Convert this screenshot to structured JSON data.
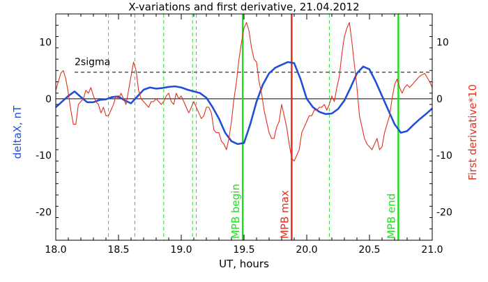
{
  "chart_data": {
    "type": "line",
    "title": "X-variations and first derivative, 21.04.2012",
    "xlabel": "UT, hours",
    "ylabel_left": "deltaX, nT",
    "ylabel_right": "First derivative*10",
    "xlim": [
      18.0,
      21.0
    ],
    "ylim": [
      -25,
      15
    ],
    "x_ticks": [
      18.0,
      18.5,
      19.0,
      19.5,
      20.0,
      20.5,
      21.0
    ],
    "x_tick_labels": [
      "18.0",
      "18.5",
      "19.0",
      "19.5",
      "20.0",
      "20.5",
      "21.0"
    ],
    "y_ticks": [
      -20,
      -10,
      0,
      10
    ],
    "y_tick_labels": [
      "-20",
      "-10",
      "0",
      "10"
    ],
    "grid": false,
    "colors": {
      "deltaX": "#1f4fd8",
      "derivative": "#e0301e",
      "green": "#22dd22",
      "red": "#e0301e",
      "axis": "#000000"
    },
    "sigma_line": {
      "label": "2sigma",
      "value": 4.7
    },
    "zero_line": 0,
    "dashed_markers": [
      18.42,
      18.63,
      18.86,
      19.09,
      19.12,
      20.18
    ],
    "event_lines": [
      {
        "label": "MPB begin",
        "x": 19.49,
        "color": "#22dd22"
      },
      {
        "label": "MPB max",
        "x": 19.88,
        "color": "#e0301e"
      },
      {
        "label": "MPB end",
        "x": 20.73,
        "color": "#22dd22"
      }
    ],
    "series": [
      {
        "id": "deltaX",
        "color": "#1f4fd8",
        "x": [
          18.0,
          18.05,
          18.1,
          18.15,
          18.2,
          18.25,
          18.3,
          18.35,
          18.4,
          18.45,
          18.5,
          18.55,
          18.6,
          18.65,
          18.7,
          18.75,
          18.8,
          18.85,
          18.9,
          18.95,
          19.0,
          19.05,
          19.1,
          19.15,
          19.2,
          19.25,
          19.3,
          19.35,
          19.4,
          19.45,
          19.5,
          19.55,
          19.6,
          19.65,
          19.7,
          19.75,
          19.8,
          19.85,
          19.9,
          19.95,
          20.0,
          20.05,
          20.1,
          20.15,
          20.2,
          20.25,
          20.3,
          20.35,
          20.4,
          20.45,
          20.5,
          20.55,
          20.6,
          20.65,
          20.7,
          20.75,
          20.8,
          20.85,
          20.9,
          20.95,
          21.0
        ],
        "values": [
          -1.5,
          -0.5,
          0.5,
          1.3,
          0.3,
          -0.6,
          -0.6,
          -0.2,
          -0.1,
          0.3,
          0.4,
          -0.3,
          -0.8,
          0.4,
          1.6,
          2.0,
          1.8,
          1.9,
          2.1,
          2.2,
          2.0,
          1.6,
          1.3,
          1.0,
          0.2,
          -1.5,
          -3.5,
          -6.0,
          -7.5,
          -8.0,
          -7.8,
          -4.5,
          -0.5,
          2.5,
          4.5,
          5.5,
          6.0,
          6.5,
          6.3,
          3.5,
          0.0,
          -1.5,
          -2.3,
          -2.7,
          -2.6,
          -1.8,
          -0.3,
          2.0,
          4.5,
          5.7,
          5.2,
          3.0,
          0.5,
          -2.0,
          -4.5,
          -6.0,
          -5.7,
          -4.6,
          -3.6,
          -2.7,
          -1.7
        ]
      },
      {
        "id": "derivative",
        "color": "#e0301e",
        "x": [
          18.0,
          18.02,
          18.04,
          18.06,
          18.08,
          18.1,
          18.12,
          18.14,
          18.16,
          18.18,
          18.2,
          18.22,
          18.24,
          18.26,
          18.28,
          18.3,
          18.32,
          18.34,
          18.36,
          18.38,
          18.4,
          18.42,
          18.44,
          18.46,
          18.48,
          18.5,
          18.52,
          18.54,
          18.56,
          18.58,
          18.6,
          18.62,
          18.64,
          18.66,
          18.68,
          18.7,
          18.72,
          18.74,
          18.76,
          18.78,
          18.8,
          18.82,
          18.84,
          18.86,
          18.88,
          18.9,
          18.92,
          18.94,
          18.96,
          18.98,
          19.0,
          19.02,
          19.04,
          19.06,
          19.08,
          19.1,
          19.12,
          19.14,
          19.16,
          19.18,
          19.2,
          19.22,
          19.24,
          19.26,
          19.28,
          19.3,
          19.32,
          19.34,
          19.36,
          19.38,
          19.4,
          19.42,
          19.44,
          19.46,
          19.48,
          19.5,
          19.52,
          19.54,
          19.56,
          19.58,
          19.6,
          19.62,
          19.64,
          19.66,
          19.68,
          19.7,
          19.72,
          19.74,
          19.76,
          19.78,
          19.8,
          19.82,
          19.84,
          19.86,
          19.88,
          19.9,
          19.92,
          19.94,
          19.96,
          19.98,
          20.0,
          20.02,
          20.04,
          20.06,
          20.08,
          20.1,
          20.12,
          20.14,
          20.16,
          20.18,
          20.2,
          20.22,
          20.24,
          20.26,
          20.28,
          20.3,
          20.32,
          20.34,
          20.36,
          20.38,
          20.4,
          20.42,
          20.44,
          20.46,
          20.48,
          20.5,
          20.52,
          20.54,
          20.56,
          20.58,
          20.6,
          20.62,
          20.64,
          20.66,
          20.68,
          20.7,
          20.72,
          20.74,
          20.76,
          20.78,
          20.8,
          20.82,
          20.84,
          20.86,
          20.9,
          20.94,
          20.98,
          21.0
        ],
        "values": [
          1.5,
          3.0,
          4.5,
          5.0,
          3.5,
          1.0,
          -2.0,
          -4.5,
          -4.5,
          -1.0,
          -0.5,
          0.0,
          1.5,
          1.0,
          2.0,
          0.5,
          -0.5,
          -1.0,
          -2.5,
          -1.5,
          -3.0,
          -3.0,
          -2.0,
          -1.0,
          0.5,
          0.0,
          1.0,
          0.0,
          -1.0,
          1.5,
          4.0,
          6.5,
          5.0,
          1.5,
          0.0,
          -0.5,
          -1.0,
          -1.5,
          -0.5,
          -0.5,
          0.0,
          -0.5,
          -1.0,
          -0.5,
          0.5,
          1.0,
          -0.5,
          -1.0,
          1.0,
          0.0,
          0.5,
          -0.5,
          -1.5,
          -2.5,
          -1.5,
          -0.5,
          -1.5,
          -2.5,
          -3.5,
          -3.0,
          -1.5,
          -1.5,
          -2.5,
          -5.5,
          -6.0,
          -6.0,
          -7.5,
          -8.0,
          -9.0,
          -7.0,
          -4.0,
          0.0,
          3.0,
          7.0,
          10.0,
          12.5,
          13.5,
          12.0,
          9.0,
          7.0,
          6.5,
          3.0,
          1.0,
          -2.0,
          -4.0,
          -6.0,
          -7.0,
          -7.0,
          -5.0,
          -4.0,
          -1.0,
          -3.0,
          -5.0,
          -8.0,
          -10.5,
          -11.0,
          -10.0,
          -9.0,
          -6.0,
          -5.0,
          -4.0,
          -3.0,
          -3.0,
          -2.0,
          -2.0,
          -1.5,
          -1.5,
          -1.0,
          -2.0,
          -1.0,
          0.5,
          -0.5,
          2.0,
          4.0,
          8.0,
          11.0,
          12.5,
          13.5,
          10.0,
          6.0,
          2.0,
          -3.0,
          -5.0,
          -7.0,
          -8.0,
          -8.5,
          -9.0,
          -8.0,
          -7.0,
          -9.0,
          -8.5,
          -6.0,
          -4.5,
          -3.0,
          0.0,
          2.5,
          3.5,
          2.0,
          1.0,
          2.0,
          2.5,
          2.0,
          2.5,
          3.0,
          4.0,
          4.5,
          3.0,
          2.0
        ]
      }
    ]
  }
}
